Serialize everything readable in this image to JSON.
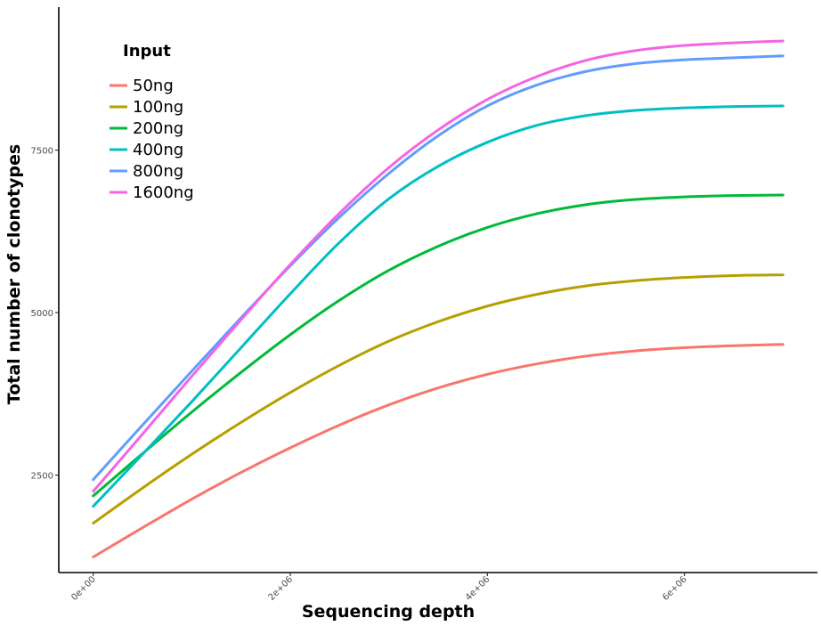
{
  "chart_data": {
    "type": "line",
    "xlabel": "Sequencing depth",
    "ylabel": "Total number of clonotypes",
    "xlim": [
      -350000,
      7350000
    ],
    "ylim": [
      1000,
      9700
    ],
    "x_ticks": [
      0,
      2000000,
      4000000,
      6000000
    ],
    "x_tick_labels": [
      "0e+00",
      "2e+06",
      "4e+06",
      "6e+06"
    ],
    "y_ticks": [
      2500,
      5000,
      7500
    ],
    "y_tick_labels": [
      "2500",
      "5000",
      "7500"
    ],
    "grid": false,
    "legend": {
      "title": "Input",
      "placement": "top-left"
    },
    "x": [
      0,
      500000,
      1000000,
      1500000,
      2000000,
      2500000,
      3000000,
      3500000,
      4000000,
      4500000,
      5000000,
      5500000,
      6000000,
      6500000,
      7000000
    ],
    "series": [
      {
        "name": "50ng",
        "color": "#F8766D",
        "values": [
          1240,
          1690,
          2130,
          2540,
          2920,
          3270,
          3580,
          3840,
          4050,
          4210,
          4330,
          4410,
          4460,
          4490,
          4510
        ]
      },
      {
        "name": "100ng",
        "color": "#B79F00",
        "values": [
          1760,
          2300,
          2820,
          3310,
          3770,
          4190,
          4560,
          4860,
          5100,
          5280,
          5410,
          5490,
          5540,
          5570,
          5580
        ]
      },
      {
        "name": "200ng",
        "color": "#00BA38",
        "values": [
          2180,
          2830,
          3470,
          4080,
          4660,
          5190,
          5650,
          6020,
          6310,
          6520,
          6660,
          6740,
          6780,
          6800,
          6810
        ]
      },
      {
        "name": "400ng",
        "color": "#00BFC4",
        "values": [
          2020,
          2820,
          3630,
          4460,
          5290,
          6080,
          6750,
          7250,
          7620,
          7880,
          8030,
          8110,
          8150,
          8170,
          8180
        ]
      },
      {
        "name": "800ng",
        "color": "#619CFF",
        "values": [
          2430,
          3270,
          4100,
          4920,
          5720,
          6470,
          7140,
          7720,
          8180,
          8500,
          8710,
          8830,
          8890,
          8920,
          8950
        ]
      },
      {
        "name": "1600ng",
        "color": "#F564E3",
        "values": [
          2250,
          3130,
          4020,
          4890,
          5740,
          6530,
          7230,
          7810,
          8280,
          8630,
          8880,
          9030,
          9110,
          9150,
          9180
        ]
      }
    ]
  }
}
